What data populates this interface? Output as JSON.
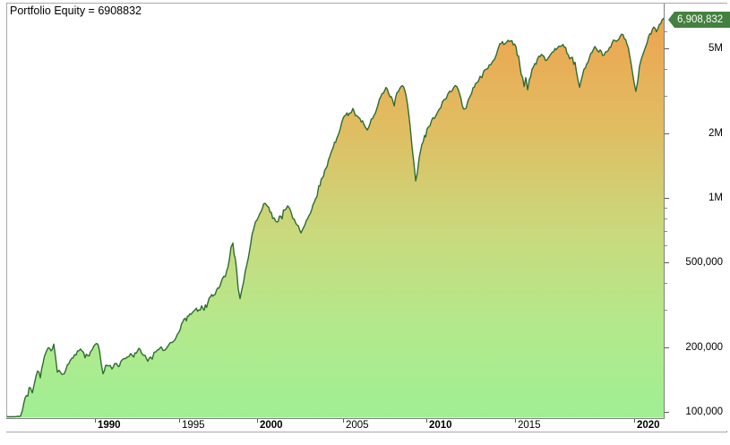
{
  "title": {
    "text": "Portfolio Equity = 6908832"
  },
  "badge": {
    "text": "6,908,832",
    "bg": "#44803f",
    "fg": "#ffffff"
  },
  "colors": {
    "line": "#2f6b30",
    "area_top": "#efa14d",
    "area_upper_mid": "#e0bd62",
    "area_mid": "#c9d97c",
    "area_lower_mid": "#b3e98c",
    "area_bottom": "#a0ee93",
    "axis_line": "#808080",
    "panel_border": "#a8a8a8",
    "tick_text": "#000000"
  },
  "chart_data": {
    "type": "area",
    "title": "Portfolio Equity",
    "x_unit": "year",
    "y_unit": "equity",
    "y_scale": "log",
    "grid": false,
    "legend": "none",
    "xlim": [
      1985.5,
      2021.6
    ],
    "ylim": [
      95000,
      7200000
    ],
    "final_equity": 6908832,
    "y_axis": {
      "side": "right",
      "major_ticks": [
        {
          "value": 5000000,
          "label": "5M"
        },
        {
          "value": 2000000,
          "label": "2M"
        },
        {
          "value": 1000000,
          "label": "1M"
        },
        {
          "value": 500000,
          "label": "500,000"
        },
        {
          "value": 200000,
          "label": "200,000"
        },
        {
          "value": 100000,
          "label": "100,000"
        }
      ],
      "minor_tick_values": [
        300000,
        400000,
        600000,
        700000,
        800000,
        900000,
        3000000,
        4000000,
        6000000
      ]
    },
    "x_axis": {
      "ticks": [
        {
          "year": 1990,
          "label": "1990",
          "bold": true
        },
        {
          "year": 1995,
          "label": "1995",
          "bold": false
        },
        {
          "year": 2000,
          "label": "2000",
          "bold": true
        },
        {
          "year": 2005,
          "label": "2005",
          "bold": false
        },
        {
          "year": 2010,
          "label": "2010",
          "bold": true
        },
        {
          "year": 2015,
          "label": "2015",
          "bold": false
        },
        {
          "year": 2020,
          "label": "2020",
          "bold": true
        }
      ]
    },
    "series": [
      {
        "name": "Portfolio Equity",
        "points": [
          [
            1985.5,
            95000
          ],
          [
            1986.19,
            95000
          ],
          [
            1986.28,
            102000
          ],
          [
            1986.42,
            116000
          ],
          [
            1986.56,
            125000
          ],
          [
            1986.69,
            134000
          ],
          [
            1986.79,
            124000
          ],
          [
            1986.92,
            140000
          ],
          [
            1987.06,
            154000
          ],
          [
            1987.2,
            147000
          ],
          [
            1987.34,
            170000
          ],
          [
            1987.47,
            187000
          ],
          [
            1987.61,
            202000
          ],
          [
            1987.75,
            191000
          ],
          [
            1987.89,
            206000
          ],
          [
            1987.98,
            178000
          ],
          [
            1988.07,
            150000
          ],
          [
            1988.16,
            159000
          ],
          [
            1988.35,
            147000
          ],
          [
            1988.58,
            165000
          ],
          [
            1988.81,
            178000
          ],
          [
            1989.03,
            187000
          ],
          [
            1989.26,
            196000
          ],
          [
            1989.49,
            182000
          ],
          [
            1989.77,
            191000
          ],
          [
            1989.95,
            206000
          ],
          [
            1990.11,
            210000
          ],
          [
            1990.27,
            196000
          ],
          [
            1990.48,
            150000
          ],
          [
            1990.64,
            162000
          ],
          [
            1990.8,
            165000
          ],
          [
            1991.01,
            159000
          ],
          [
            1991.17,
            170000
          ],
          [
            1991.38,
            165000
          ],
          [
            1991.6,
            178000
          ],
          [
            1991.81,
            175000
          ],
          [
            1992.02,
            185000
          ],
          [
            1992.23,
            182000
          ],
          [
            1992.45,
            189000
          ],
          [
            1992.61,
            196000
          ],
          [
            1992.77,
            191000
          ],
          [
            1992.98,
            182000
          ],
          [
            1993.14,
            170000
          ],
          [
            1993.3,
            182000
          ],
          [
            1993.51,
            187000
          ],
          [
            1993.72,
            196000
          ],
          [
            1993.94,
            200000
          ],
          [
            1994.15,
            193000
          ],
          [
            1994.36,
            206000
          ],
          [
            1994.57,
            210000
          ],
          [
            1994.79,
            220000
          ],
          [
            1995.0,
            238000
          ],
          [
            1995.23,
            262000
          ],
          [
            1995.46,
            275000
          ],
          [
            1995.69,
            283000
          ],
          [
            1995.86,
            289000
          ],
          [
            1996.03,
            303000
          ],
          [
            1996.26,
            297000
          ],
          [
            1996.44,
            312000
          ],
          [
            1996.61,
            303000
          ],
          [
            1996.84,
            324000
          ],
          [
            1997.01,
            343000
          ],
          [
            1997.24,
            357000
          ],
          [
            1997.47,
            378000
          ],
          [
            1997.7,
            404000
          ],
          [
            1997.87,
            424000
          ],
          [
            1998.05,
            454000
          ],
          [
            1998.22,
            504000
          ],
          [
            1998.33,
            577000
          ],
          [
            1998.45,
            606000
          ],
          [
            1998.68,
            467000
          ],
          [
            1998.79,
            393000
          ],
          [
            1998.91,
            343000
          ],
          [
            1999.02,
            364000
          ],
          [
            1999.14,
            404000
          ],
          [
            1999.25,
            458000
          ],
          [
            1999.43,
            529000
          ],
          [
            1999.6,
            624000
          ],
          [
            1999.77,
            714000
          ],
          [
            1999.89,
            756000
          ],
          [
            2000.0,
            794000
          ],
          [
            2000.16,
            849000
          ],
          [
            2000.31,
            899000
          ],
          [
            2000.47,
            953000
          ],
          [
            2000.57,
            917000
          ],
          [
            2000.68,
            891000
          ],
          [
            2000.83,
            857000
          ],
          [
            2000.99,
            809000
          ],
          [
            2001.15,
            771000
          ],
          [
            2001.3,
            809000
          ],
          [
            2001.46,
            841000
          ],
          [
            2001.61,
            891000
          ],
          [
            2001.77,
            908000
          ],
          [
            2001.93,
            865000
          ],
          [
            2002.08,
            817000
          ],
          [
            2002.24,
            771000
          ],
          [
            2002.4,
            728000
          ],
          [
            2002.55,
            687000
          ],
          [
            2002.71,
            735000
          ],
          [
            2002.86,
            779000
          ],
          [
            2003.02,
            825000
          ],
          [
            2003.18,
            891000
          ],
          [
            2003.39,
            1000000
          ],
          [
            2003.59,
            1120000
          ],
          [
            2003.8,
            1240000
          ],
          [
            2004.01,
            1370000
          ],
          [
            2004.22,
            1540000
          ],
          [
            2004.43,
            1750000
          ],
          [
            2004.64,
            1930000
          ],
          [
            2004.84,
            2100000
          ],
          [
            2005.0,
            2310000
          ],
          [
            2005.16,
            2430000
          ],
          [
            2005.38,
            2480000
          ],
          [
            2005.59,
            2570000
          ],
          [
            2005.81,
            2430000
          ],
          [
            2006.02,
            2330000
          ],
          [
            2006.24,
            2250000
          ],
          [
            2006.45,
            2060000
          ],
          [
            2006.61,
            2200000
          ],
          [
            2006.78,
            2380000
          ],
          [
            2006.94,
            2500000
          ],
          [
            2007.1,
            2750000
          ],
          [
            2007.26,
            2940000
          ],
          [
            2007.42,
            3120000
          ],
          [
            2007.58,
            3240000
          ],
          [
            2007.74,
            3060000
          ],
          [
            2007.9,
            2940000
          ],
          [
            2008.07,
            2830000
          ],
          [
            2008.23,
            3090000
          ],
          [
            2008.39,
            3270000
          ],
          [
            2008.55,
            3400000
          ],
          [
            2008.71,
            3210000
          ],
          [
            2008.87,
            2750000
          ],
          [
            2009.03,
            2160000
          ],
          [
            2009.14,
            1750000
          ],
          [
            2009.25,
            1440000
          ],
          [
            2009.36,
            1220000
          ],
          [
            2009.46,
            1340000
          ],
          [
            2009.57,
            1540000
          ],
          [
            2009.73,
            1750000
          ],
          [
            2009.89,
            1920000
          ],
          [
            2010.1,
            2140000
          ],
          [
            2010.3,
            2290000
          ],
          [
            2010.51,
            2400000
          ],
          [
            2010.71,
            2600000
          ],
          [
            2010.91,
            2780000
          ],
          [
            2011.11,
            2940000
          ],
          [
            2011.31,
            3120000
          ],
          [
            2011.52,
            3240000
          ],
          [
            2011.72,
            3370000
          ],
          [
            2011.87,
            3060000
          ],
          [
            2012.02,
            2750000
          ],
          [
            2012.17,
            2570000
          ],
          [
            2012.32,
            2800000
          ],
          [
            2012.47,
            3000000
          ],
          [
            2012.63,
            3210000
          ],
          [
            2012.78,
            3370000
          ],
          [
            2012.93,
            3570000
          ],
          [
            2013.13,
            3780000
          ],
          [
            2013.33,
            3970000
          ],
          [
            2013.54,
            4160000
          ],
          [
            2013.74,
            4370000
          ],
          [
            2013.94,
            4670000
          ],
          [
            2014.14,
            5150000
          ],
          [
            2014.29,
            5350000
          ],
          [
            2014.44,
            5150000
          ],
          [
            2014.6,
            5400000
          ],
          [
            2014.75,
            5450000
          ],
          [
            2014.9,
            5250000
          ],
          [
            2015.04,
            5040000
          ],
          [
            2015.15,
            4580000
          ],
          [
            2015.26,
            3850000
          ],
          [
            2015.38,
            3330000
          ],
          [
            2015.45,
            3600000
          ],
          [
            2015.53,
            3240000
          ],
          [
            2015.6,
            3500000
          ],
          [
            2015.71,
            4000000
          ],
          [
            2015.83,
            4330000
          ],
          [
            2015.94,
            4500000
          ],
          [
            2016.05,
            4580000
          ],
          [
            2016.17,
            4670000
          ],
          [
            2016.28,
            4410000
          ],
          [
            2016.39,
            4580000
          ],
          [
            2016.5,
            4760000
          ],
          [
            2016.62,
            4860000
          ],
          [
            2016.73,
            4950000
          ],
          [
            2016.84,
            5040000
          ],
          [
            2016.95,
            5090000
          ],
          [
            2017.07,
            5150000
          ],
          [
            2017.18,
            4860000
          ],
          [
            2017.29,
            4450000
          ],
          [
            2017.41,
            4580000
          ],
          [
            2017.52,
            4240000
          ],
          [
            2017.63,
            3670000
          ],
          [
            2017.71,
            3270000
          ],
          [
            2017.78,
            3570000
          ],
          [
            2017.89,
            3930000
          ],
          [
            2018.01,
            4240000
          ],
          [
            2018.12,
            4540000
          ],
          [
            2018.23,
            4810000
          ],
          [
            2018.35,
            5040000
          ],
          [
            2018.46,
            5090000
          ],
          [
            2018.57,
            4900000
          ],
          [
            2018.68,
            4670000
          ],
          [
            2018.8,
            4810000
          ],
          [
            2018.91,
            4950000
          ],
          [
            2019.02,
            5150000
          ],
          [
            2019.13,
            5350000
          ],
          [
            2019.25,
            5500000
          ],
          [
            2019.36,
            5610000
          ],
          [
            2019.47,
            5770000
          ],
          [
            2019.59,
            5610000
          ],
          [
            2019.7,
            5250000
          ],
          [
            2019.81,
            4670000
          ],
          [
            2019.92,
            3930000
          ],
          [
            2020.0,
            3500000
          ],
          [
            2020.09,
            3180000
          ],
          [
            2020.19,
            3570000
          ],
          [
            2020.28,
            4080000
          ],
          [
            2020.38,
            4500000
          ],
          [
            2020.47,
            4810000
          ],
          [
            2020.61,
            5190000
          ],
          [
            2020.75,
            5610000
          ],
          [
            2020.89,
            5940000
          ],
          [
            2021.03,
            6180000
          ],
          [
            2021.17,
            6000000
          ],
          [
            2021.32,
            6420000
          ],
          [
            2021.46,
            6670000
          ],
          [
            2021.55,
            6908832
          ]
        ]
      }
    ]
  }
}
